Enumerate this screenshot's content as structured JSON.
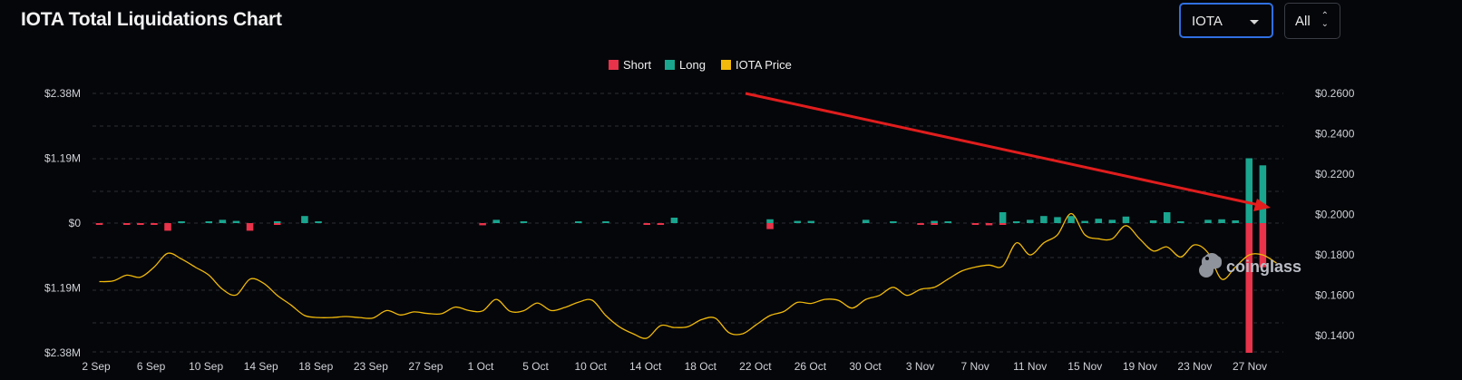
{
  "header": {
    "title": "IOTA Total Liquidations Chart",
    "coin_select": {
      "value": "IOTA"
    },
    "range_select": {
      "value": "All"
    }
  },
  "watermark": "coinglass",
  "colors": {
    "short": "#e8334a",
    "long": "#1aa58f",
    "price": "#f0b90b",
    "arrow": "#e11d1d",
    "accent": "#2f6fe0"
  },
  "chart_data": {
    "type": "bar",
    "title": "",
    "legend": [
      "Short",
      "Long",
      "IOTA Price"
    ],
    "legend_position": "top-center",
    "grid": true,
    "left_axis": {
      "ticks": [
        "$2.38M",
        "$1.19M",
        "$0",
        "$1.19M",
        "$2.38M"
      ],
      "values": [
        2380000,
        1190000,
        0,
        -1190000,
        -2380000
      ],
      "range": [
        -2380000,
        2380000
      ]
    },
    "right_axis": {
      "ticks": [
        "$0.2600",
        "$0.2400",
        "$0.2200",
        "$0.2000",
        "$0.1800",
        "$0.1600",
        "$0.1400"
      ],
      "values": [
        0.26,
        0.24,
        0.22,
        0.2,
        0.18,
        0.16,
        0.14
      ],
      "range": [
        0.132,
        0.26
      ]
    },
    "x_ticks": [
      "2 Sep",
      "6 Sep",
      "10 Sep",
      "14 Sep",
      "18 Sep",
      "23 Sep",
      "27 Sep",
      "1 Oct",
      "5 Oct",
      "10 Oct",
      "14 Oct",
      "18 Oct",
      "22 Oct",
      "26 Oct",
      "30 Oct",
      "3 Nov",
      "7 Nov",
      "11 Nov",
      "15 Nov",
      "19 Nov",
      "23 Nov",
      "27 Nov"
    ],
    "long_bars": [
      {
        "day": 6,
        "value": 20000
      },
      {
        "day": 8,
        "value": 30000
      },
      {
        "day": 9,
        "value": 60000
      },
      {
        "day": 10,
        "value": 40000
      },
      {
        "day": 13,
        "value": 20000
      },
      {
        "day": 15,
        "value": 130000
      },
      {
        "day": 16,
        "value": 30000
      },
      {
        "day": 29,
        "value": 60000
      },
      {
        "day": 31,
        "value": 30000
      },
      {
        "day": 35,
        "value": 30000
      },
      {
        "day": 37,
        "value": 30000
      },
      {
        "day": 42,
        "value": 100000
      },
      {
        "day": 49,
        "value": 70000
      },
      {
        "day": 51,
        "value": 40000
      },
      {
        "day": 52,
        "value": 40000
      },
      {
        "day": 56,
        "value": 60000
      },
      {
        "day": 58,
        "value": 30000
      },
      {
        "day": 61,
        "value": 40000
      },
      {
        "day": 62,
        "value": 20000
      },
      {
        "day": 66,
        "value": 200000
      },
      {
        "day": 67,
        "value": 30000
      },
      {
        "day": 68,
        "value": 60000
      },
      {
        "day": 69,
        "value": 130000
      },
      {
        "day": 70,
        "value": 110000
      },
      {
        "day": 71,
        "value": 130000
      },
      {
        "day": 72,
        "value": 40000
      },
      {
        "day": 73,
        "value": 80000
      },
      {
        "day": 74,
        "value": 60000
      },
      {
        "day": 75,
        "value": 120000
      },
      {
        "day": 77,
        "value": 50000
      },
      {
        "day": 78,
        "value": 200000
      },
      {
        "day": 79,
        "value": 30000
      },
      {
        "day": 81,
        "value": 60000
      },
      {
        "day": 82,
        "value": 70000
      },
      {
        "day": 83,
        "value": 50000
      },
      {
        "day": 84,
        "value": 1190000
      },
      {
        "day": 85,
        "value": 1060000
      }
    ],
    "short_bars": [
      {
        "day": 0,
        "value": 20000
      },
      {
        "day": 2,
        "value": 30000
      },
      {
        "day": 3,
        "value": 30000
      },
      {
        "day": 4,
        "value": 30000
      },
      {
        "day": 5,
        "value": 140000
      },
      {
        "day": 11,
        "value": 140000
      },
      {
        "day": 13,
        "value": 20000
      },
      {
        "day": 28,
        "value": 40000
      },
      {
        "day": 40,
        "value": 20000
      },
      {
        "day": 41,
        "value": 20000
      },
      {
        "day": 49,
        "value": 110000
      },
      {
        "day": 60,
        "value": 30000
      },
      {
        "day": 61,
        "value": 20000
      },
      {
        "day": 64,
        "value": 20000
      },
      {
        "day": 65,
        "value": 40000
      },
      {
        "day": 66,
        "value": 30000
      },
      {
        "day": 84,
        "value": 2380000
      },
      {
        "day": 85,
        "value": 810000
      }
    ],
    "price": [
      [
        0,
        0.1668
      ],
      [
        1,
        0.1671
      ],
      [
        2,
        0.17
      ],
      [
        3,
        0.169
      ],
      [
        4,
        0.174
      ],
      [
        5,
        0.1808
      ],
      [
        6,
        0.178
      ],
      [
        7,
        0.174
      ],
      [
        8,
        0.17
      ],
      [
        9,
        0.163
      ],
      [
        10,
        0.1602
      ],
      [
        11,
        0.168
      ],
      [
        12,
        0.166
      ],
      [
        13,
        0.16
      ],
      [
        14,
        0.1552
      ],
      [
        15,
        0.15
      ],
      [
        16,
        0.149
      ],
      [
        17,
        0.149
      ],
      [
        18,
        0.1495
      ],
      [
        19,
        0.149
      ],
      [
        20,
        0.1488
      ],
      [
        21,
        0.1525
      ],
      [
        22,
        0.1503
      ],
      [
        23,
        0.1518
      ],
      [
        24,
        0.151
      ],
      [
        25,
        0.1509
      ],
      [
        26,
        0.1542
      ],
      [
        27,
        0.1525
      ],
      [
        28,
        0.1523
      ],
      [
        29,
        0.158
      ],
      [
        30,
        0.1521
      ],
      [
        31,
        0.1524
      ],
      [
        32,
        0.1562
      ],
      [
        33,
        0.1525
      ],
      [
        34,
        0.154
      ],
      [
        35,
        0.1566
      ],
      [
        36,
        0.1576
      ],
      [
        37,
        0.15
      ],
      [
        38,
        0.1444
      ],
      [
        39,
        0.141
      ],
      [
        40,
        0.1388
      ],
      [
        41,
        0.145
      ],
      [
        42,
        0.1441
      ],
      [
        43,
        0.1445
      ],
      [
        44,
        0.148
      ],
      [
        45,
        0.1487
      ],
      [
        46,
        0.1415
      ],
      [
        47,
        0.141
      ],
      [
        48,
        0.1455
      ],
      [
        49,
        0.15
      ],
      [
        50,
        0.152
      ],
      [
        51,
        0.1565
      ],
      [
        52,
        0.156
      ],
      [
        53,
        0.158
      ],
      [
        54,
        0.1575
      ],
      [
        55,
        0.1537
      ],
      [
        56,
        0.158
      ],
      [
        57,
        0.16
      ],
      [
        58,
        0.164
      ],
      [
        59,
        0.16
      ],
      [
        60,
        0.163
      ],
      [
        61,
        0.164
      ],
      [
        62,
        0.168
      ],
      [
        63,
        0.172
      ],
      [
        64,
        0.174
      ],
      [
        65,
        0.175
      ],
      [
        66,
        0.1745
      ],
      [
        67,
        0.186
      ],
      [
        68,
        0.18
      ],
      [
        69,
        0.186
      ],
      [
        70,
        0.19
      ],
      [
        71,
        0.2005
      ],
      [
        72,
        0.19
      ],
      [
        73,
        0.188
      ],
      [
        74,
        0.188
      ],
      [
        75,
        0.1945
      ],
      [
        76,
        0.188
      ],
      [
        77,
        0.182
      ],
      [
        78,
        0.184
      ],
      [
        79,
        0.179
      ],
      [
        80,
        0.185
      ],
      [
        81,
        0.181
      ],
      [
        82,
        0.168
      ],
      [
        83,
        0.174
      ],
      [
        84,
        0.18
      ],
      [
        85,
        0.18
      ],
      [
        86,
        0.176
      ]
    ]
  }
}
